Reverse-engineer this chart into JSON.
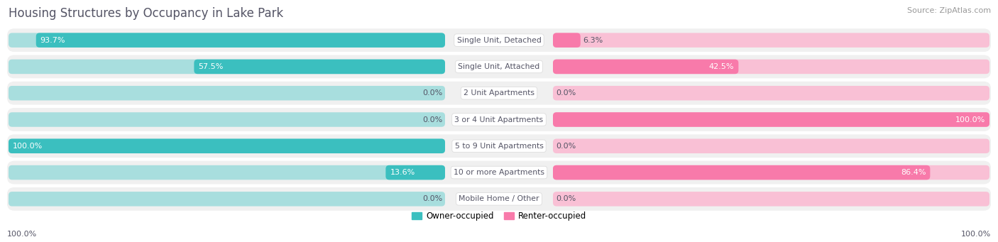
{
  "title": "Housing Structures by Occupancy in Lake Park",
  "source": "Source: ZipAtlas.com",
  "categories": [
    "Single Unit, Detached",
    "Single Unit, Attached",
    "2 Unit Apartments",
    "3 or 4 Unit Apartments",
    "5 to 9 Unit Apartments",
    "10 or more Apartments",
    "Mobile Home / Other"
  ],
  "owner_pct": [
    93.7,
    57.5,
    0.0,
    0.0,
    100.0,
    13.6,
    0.0
  ],
  "renter_pct": [
    6.3,
    42.5,
    0.0,
    100.0,
    0.0,
    86.4,
    0.0
  ],
  "owner_color": "#3bbfbf",
  "renter_color": "#f87aaa",
  "owner_color_light": "#a8dede",
  "renter_color_light": "#f9c0d5",
  "row_bg": "#f0f0f0",
  "figsize": [
    14.06,
    3.41
  ],
  "dpi": 100,
  "title_color": "#555566",
  "source_color": "#999999",
  "pct_text_color_dark": "#555566",
  "pct_text_color_light": "#ffffff",
  "cat_label_color": "#555566"
}
